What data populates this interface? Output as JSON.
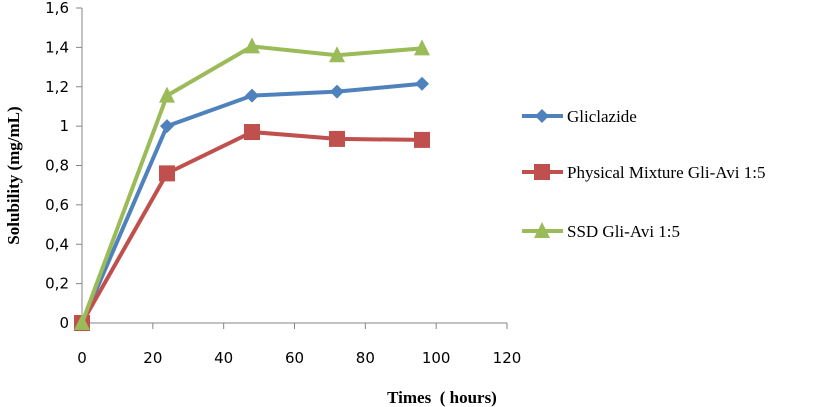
{
  "chart_data": {
    "type": "line",
    "title": "",
    "xlabel": "Times  ( hours)",
    "ylabel": "Solubility (mg/mL)",
    "xlim": [
      0,
      120
    ],
    "ylim": [
      0,
      1.6
    ],
    "x_ticks": [
      0,
      20,
      40,
      60,
      80,
      100,
      120
    ],
    "x_tick_labels": [
      "0",
      "20",
      "40",
      "60",
      "80",
      "100",
      "120"
    ],
    "y_ticks": [
      0,
      0.2,
      0.4,
      0.6,
      0.8,
      1.0,
      1.2,
      1.4,
      1.6
    ],
    "y_tick_labels": [
      "0",
      "0,2",
      "0,4",
      "0,6",
      "0,8",
      "1",
      "1,2",
      "1,4",
      "1,6"
    ],
    "grid": false,
    "legend_position": "right",
    "x": [
      0,
      24,
      48,
      72,
      96
    ],
    "series": [
      {
        "name": "Gliclazide",
        "color": "#4F81BD",
        "marker": "diamond",
        "values": [
          0,
          1.0,
          1.155,
          1.175,
          1.215
        ]
      },
      {
        "name": "Physical Mixture Gli-Avi 1:5",
        "color": "#C0504D",
        "marker": "square",
        "values": [
          0,
          0.76,
          0.97,
          0.935,
          0.93
        ]
      },
      {
        "name": "SSD Gli-Avi 1:5",
        "color": "#9BBB59",
        "marker": "triangle",
        "values": [
          0,
          1.155,
          1.405,
          1.36,
          1.395
        ]
      }
    ]
  }
}
